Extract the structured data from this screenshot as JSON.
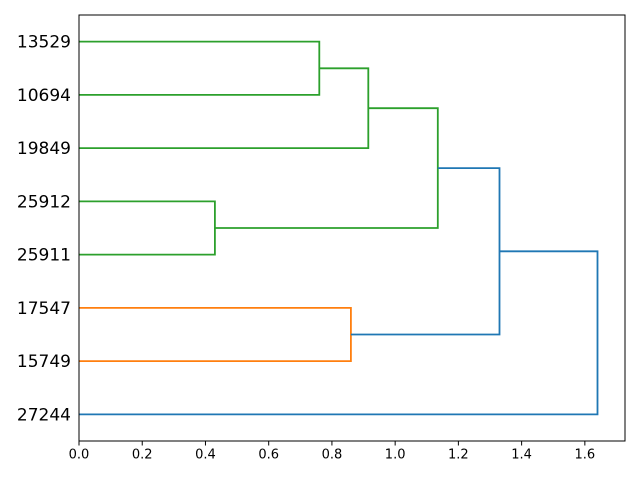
{
  "figure": {
    "background": "#ffffff"
  },
  "chart_data": {
    "type": "dendrogram",
    "title": "",
    "xlabel": "",
    "ylabel": "",
    "orientation": "labels-left-root-right",
    "leaves": [
      {
        "id": "leaf-0",
        "label": "13529"
      },
      {
        "id": "leaf-1",
        "label": "10694"
      },
      {
        "id": "leaf-2",
        "label": "19849"
      },
      {
        "id": "leaf-3",
        "label": "25912"
      },
      {
        "id": "leaf-4",
        "label": "25911"
      },
      {
        "id": "leaf-5",
        "label": "17547"
      },
      {
        "id": "leaf-6",
        "label": "15749"
      },
      {
        "id": "leaf-7",
        "label": "27244"
      }
    ],
    "links": [
      {
        "id": "link-A",
        "children": [
          "leaf-3",
          "leaf-4"
        ],
        "distance": 0.43,
        "color": "green"
      },
      {
        "id": "link-B",
        "children": [
          "leaf-0",
          "leaf-1"
        ],
        "distance": 0.76,
        "color": "green"
      },
      {
        "id": "link-C",
        "children": [
          "leaf-5",
          "leaf-6"
        ],
        "distance": 0.86,
        "color": "orange"
      },
      {
        "id": "link-D",
        "children": [
          "link-B",
          "leaf-2"
        ],
        "distance": 0.915,
        "color": "green"
      },
      {
        "id": "link-E",
        "children": [
          "link-D",
          "link-A"
        ],
        "distance": 1.135,
        "color": "green"
      },
      {
        "id": "link-F",
        "children": [
          "link-E",
          "link-C"
        ],
        "distance": 1.33,
        "color": "blue"
      },
      {
        "id": "link-G",
        "children": [
          "link-F",
          "leaf-7"
        ],
        "distance": 1.64,
        "color": "blue"
      }
    ],
    "palette": {
      "blue": "#1f77b4",
      "orange": "#ff7f0e",
      "green": "#2ca02c"
    },
    "axis": {
      "x_ticks": [
        "0.0",
        "0.2",
        "0.4",
        "0.6",
        "0.8",
        "1.0",
        "1.2",
        "1.4",
        "1.6"
      ],
      "x_tick_values": [
        0.0,
        0.2,
        0.4,
        0.6,
        0.8,
        1.0,
        1.2,
        1.4,
        1.6
      ],
      "xlim": [
        0,
        1.727
      ],
      "grid": false,
      "frame_color": "#000000",
      "text_color": "#000000"
    }
  }
}
